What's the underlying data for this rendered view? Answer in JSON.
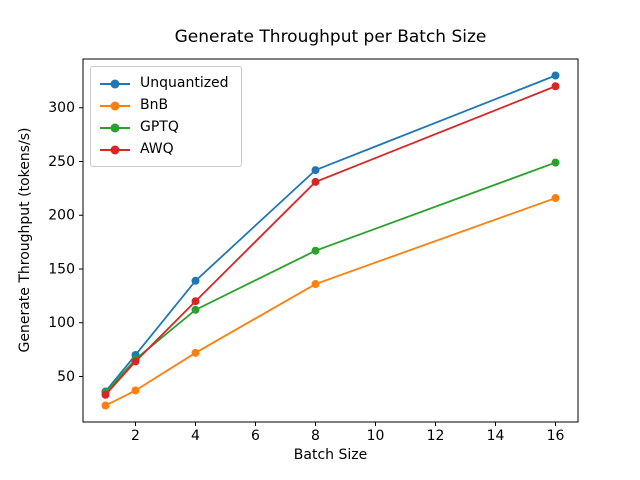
{
  "chart_data": {
    "type": "line",
    "title": "Generate Throughput per Batch Size",
    "xlabel": "Batch Size",
    "ylabel": "Generate Throughput (tokens/s)",
    "x": [
      1,
      2,
      4,
      8,
      16
    ],
    "series": [
      {
        "name": "Unquantized",
        "color": "#1f77b4",
        "values": [
          36,
          70,
          139,
          242,
          330
        ]
      },
      {
        "name": "BnB",
        "color": "#ff7f0e",
        "values": [
          23,
          37,
          72,
          136,
          216
        ]
      },
      {
        "name": "GPTQ",
        "color": "#2ca02c",
        "values": [
          35,
          66,
          112,
          167,
          249
        ]
      },
      {
        "name": "AWQ",
        "color": "#d62728",
        "values": [
          33,
          64,
          120,
          231,
          320
        ]
      }
    ],
    "xticks": [
      2,
      4,
      6,
      8,
      10,
      12,
      14,
      16
    ],
    "yticks": [
      50,
      100,
      150,
      200,
      250,
      300
    ],
    "xlim": [
      0.25,
      16.75
    ],
    "ylim": [
      7.65,
      345.35
    ],
    "grid": false,
    "marker": "o",
    "legend_position": "upper left",
    "axis_color": "#000000",
    "background_color": "#ffffff"
  }
}
